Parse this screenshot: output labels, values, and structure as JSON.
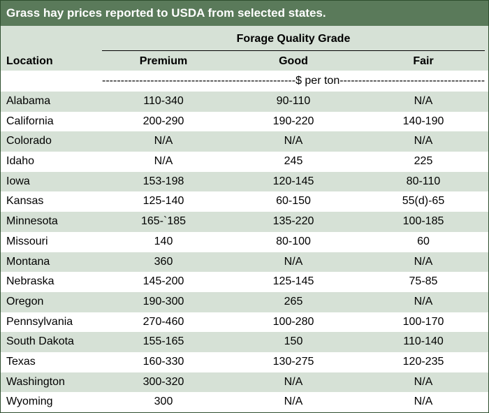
{
  "title": "Grass hay prices reported to USDA from selected states.",
  "group_header": "Forage Quality Grade",
  "columns": {
    "location": "Location",
    "premium": "Premium",
    "good": "Good",
    "fair": "Fair"
  },
  "units": "----------------------------------------------------$ per ton--------------------------------------------------------",
  "rows": [
    {
      "location": "Alabama",
      "premium": "110-340",
      "good": "90-110",
      "fair": "N/A"
    },
    {
      "location": "California",
      "premium": "200-290",
      "good": "190-220",
      "fair": "140-190"
    },
    {
      "location": "Colorado",
      "premium": "N/A",
      "good": "N/A",
      "fair": "N/A"
    },
    {
      "location": "Idaho",
      "premium": "N/A",
      "good": "245",
      "fair": "225"
    },
    {
      "location": "Iowa",
      "premium": "153-198",
      "good": "120-145",
      "fair": "80-110"
    },
    {
      "location": "Kansas",
      "premium": "125-140",
      "good": "60-150",
      "fair": "55(d)-65"
    },
    {
      "location": "Minnesota",
      "premium": "165-`185",
      "good": "135-220",
      "fair": "100-185"
    },
    {
      "location": "Missouri",
      "premium": "140",
      "good": "80-100",
      "fair": "60"
    },
    {
      "location": "Montana",
      "premium": "360",
      "good": "N/A",
      "fair": "N/A"
    },
    {
      "location": "Nebraska",
      "premium": "145-200",
      "good": "125-145",
      "fair": "75-85"
    },
    {
      "location": "Oregon",
      "premium": "190-300",
      "good": "265",
      "fair": "N/A"
    },
    {
      "location": "Pennsylvania",
      "premium": "270-460",
      "good": "100-280",
      "fair": "100-170"
    },
    {
      "location": "South Dakota",
      "premium": "155-165",
      "good": "150",
      "fair": "110-140"
    },
    {
      "location": "Texas",
      "premium": "160-330",
      "good": "130-275",
      "fair": "120-235"
    },
    {
      "location": "Washington",
      "premium": "300-320",
      "good": "N/A",
      "fair": "N/A"
    },
    {
      "location": "Wyoming",
      "premium": "300",
      "good": "N/A",
      "fair": "N/A"
    }
  ],
  "colors": {
    "title_bg": "#5a7a5a",
    "shaded_row": "#d6e1d6",
    "border": "#2f4f2f"
  }
}
